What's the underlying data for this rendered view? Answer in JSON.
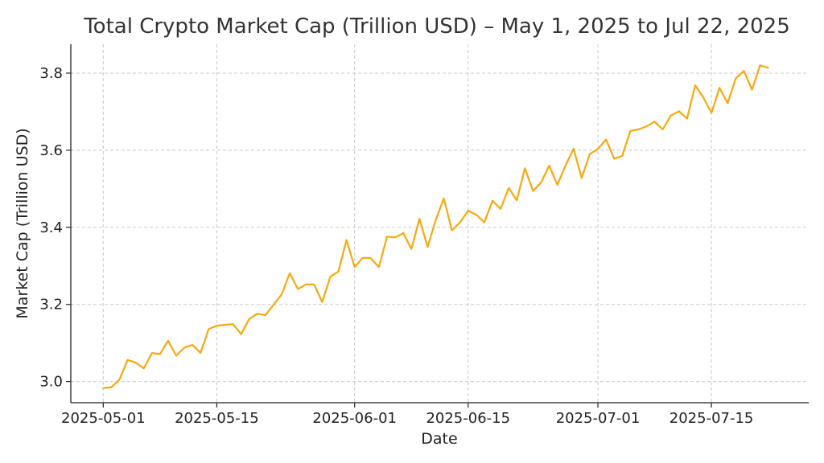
{
  "chart_data": {
    "type": "line",
    "title": "Total Crypto Market Cap (Trillion USD) – May 1, 2025 to Jul 22, 2025",
    "xlabel": "Date",
    "ylabel": "Market Cap (Trillion USD)",
    "x_ticks": [
      "2025-05-01",
      "2025-05-15",
      "2025-06-01",
      "2025-06-15",
      "2025-07-01",
      "2025-07-15"
    ],
    "y_ticks": [
      "3.0",
      "3.2",
      "3.4",
      "3.6",
      "3.8"
    ],
    "ylim": [
      2.945,
      3.875
    ],
    "xlim": [
      "2025-04-27",
      "2025-07-27"
    ],
    "grid": true,
    "color": "#f5a90f",
    "series": [
      {
        "x": [
          "2025-05-01",
          "2025-05-02",
          "2025-05-03",
          "2025-05-04",
          "2025-05-05",
          "2025-05-06",
          "2025-05-07",
          "2025-05-08",
          "2025-05-09",
          "2025-05-10",
          "2025-05-11",
          "2025-05-12",
          "2025-05-13",
          "2025-05-14",
          "2025-05-15",
          "2025-05-16",
          "2025-05-17",
          "2025-05-18",
          "2025-05-19",
          "2025-05-20",
          "2025-05-21",
          "2025-05-22",
          "2025-05-23",
          "2025-05-24",
          "2025-05-25",
          "2025-05-26",
          "2025-05-27",
          "2025-05-28",
          "2025-05-29",
          "2025-05-30",
          "2025-05-31",
          "2025-06-01",
          "2025-06-02",
          "2025-06-03",
          "2025-06-04",
          "2025-06-05",
          "2025-06-06",
          "2025-06-07",
          "2025-06-08",
          "2025-06-09",
          "2025-06-10",
          "2025-06-11",
          "2025-06-12",
          "2025-06-13",
          "2025-06-14",
          "2025-06-15",
          "2025-06-16",
          "2025-06-17",
          "2025-06-18",
          "2025-06-19",
          "2025-06-20",
          "2025-06-21",
          "2025-06-22",
          "2025-06-23",
          "2025-06-24",
          "2025-06-25",
          "2025-06-26",
          "2025-06-27",
          "2025-06-28",
          "2025-06-29",
          "2025-06-30",
          "2025-07-01",
          "2025-07-02",
          "2025-07-03",
          "2025-07-04",
          "2025-07-05",
          "2025-07-06",
          "2025-07-07",
          "2025-07-08",
          "2025-07-09",
          "2025-07-10",
          "2025-07-11",
          "2025-07-12",
          "2025-07-13",
          "2025-07-14",
          "2025-07-15",
          "2025-07-16",
          "2025-07-17",
          "2025-07-18",
          "2025-07-19",
          "2025-07-20",
          "2025-07-21",
          "2025-07-22"
        ],
        "values": [
          2.983,
          2.985,
          3.005,
          3.056,
          3.049,
          3.034,
          3.074,
          3.071,
          3.106,
          3.067,
          3.088,
          3.095,
          3.074,
          3.136,
          3.145,
          3.147,
          3.149,
          3.123,
          3.162,
          3.176,
          3.172,
          3.199,
          3.226,
          3.281,
          3.24,
          3.252,
          3.252,
          3.206,
          3.272,
          3.285,
          3.367,
          3.297,
          3.321,
          3.32,
          3.297,
          3.376,
          3.374,
          3.385,
          3.344,
          3.422,
          3.349,
          3.419,
          3.475,
          3.392,
          3.413,
          3.443,
          3.433,
          3.413,
          3.469,
          3.448,
          3.502,
          3.47,
          3.553,
          3.494,
          3.517,
          3.56,
          3.51,
          3.56,
          3.604,
          3.528,
          3.59,
          3.603,
          3.628,
          3.578,
          3.585,
          3.65,
          3.654,
          3.662,
          3.674,
          3.654,
          3.69,
          3.701,
          3.682,
          3.768,
          3.737,
          3.697,
          3.762,
          3.722,
          3.786,
          3.806,
          3.757,
          3.82,
          3.814
        ]
      }
    ]
  }
}
